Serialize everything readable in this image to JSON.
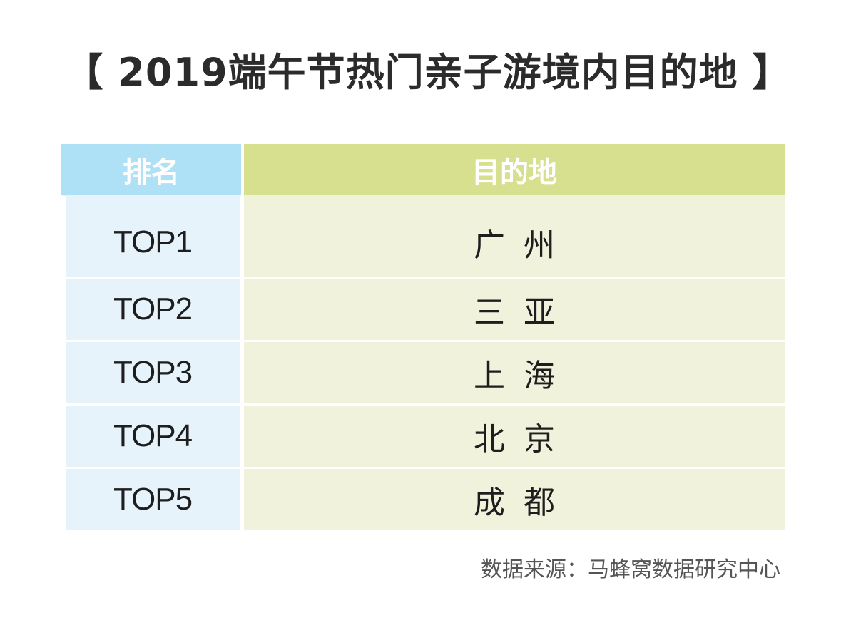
{
  "title": "【 2019端午节热门亲子游境内目的地 】",
  "table": {
    "headers": {
      "rank": "排名",
      "destination": "目的地"
    },
    "rows": [
      {
        "rank": "TOP1",
        "destination": "广州"
      },
      {
        "rank": "TOP2",
        "destination": "三亚"
      },
      {
        "rank": "TOP3",
        "destination": "上海"
      },
      {
        "rank": "TOP4",
        "destination": "北京"
      },
      {
        "rank": "TOP5",
        "destination": "成都"
      }
    ]
  },
  "source": "数据来源：马蜂窝数据研究中心",
  "colors": {
    "rank_header": "#aee0f6",
    "destination_header": "#d6e08e",
    "rank_cell": "#e6f3fb",
    "destination_cell": "#f1f2dc"
  }
}
